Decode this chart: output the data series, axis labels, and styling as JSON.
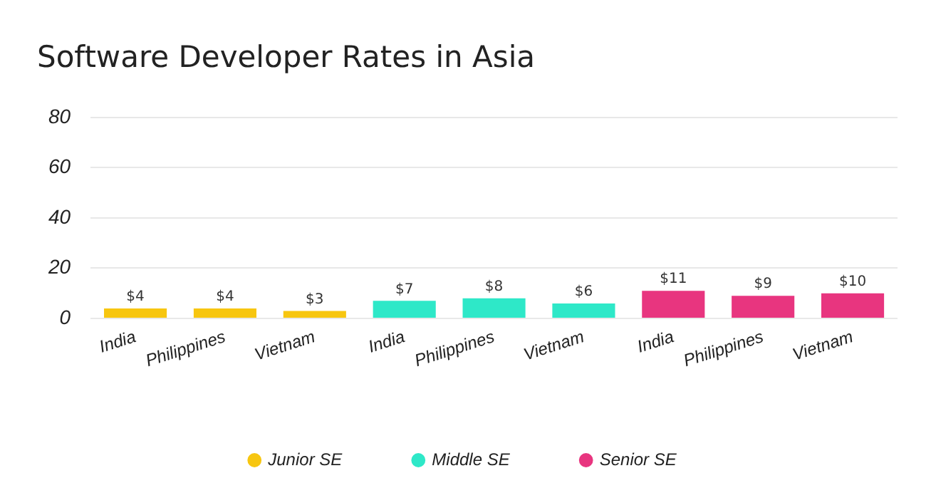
{
  "chart_data": {
    "type": "bar",
    "title": "Software Developer Rates in Asia",
    "categories": [
      "India",
      "Philippines",
      "Vietnam",
      "India",
      "Philippines",
      "Vietnam",
      "India",
      "Philippines",
      "Vietnam"
    ],
    "series": [
      {
        "name": "Junior SE",
        "color": "#f7c610",
        "values": [
          4,
          4,
          3,
          null,
          null,
          null,
          null,
          null,
          null
        ],
        "value_labels": [
          "$4",
          "$4",
          "$3",
          null,
          null,
          null,
          null,
          null,
          null
        ]
      },
      {
        "name": "Middle SE",
        "color": "#2ee8c8",
        "values": [
          null,
          null,
          null,
          7,
          8,
          6,
          null,
          null,
          null
        ],
        "value_labels": [
          null,
          null,
          null,
          "$7",
          "$8",
          "$6",
          null,
          null,
          null
        ]
      },
      {
        "name": "Senior SE",
        "color": "#e8357f",
        "values": [
          null,
          null,
          null,
          null,
          null,
          null,
          11,
          9,
          10
        ],
        "value_labels": [
          null,
          null,
          null,
          null,
          null,
          null,
          "$11",
          "$9",
          "$10"
        ]
      }
    ],
    "ylim": [
      0,
      80
    ],
    "yticks": [
      0,
      20,
      40,
      60,
      80
    ],
    "grid": "y",
    "legend": "bottom"
  }
}
